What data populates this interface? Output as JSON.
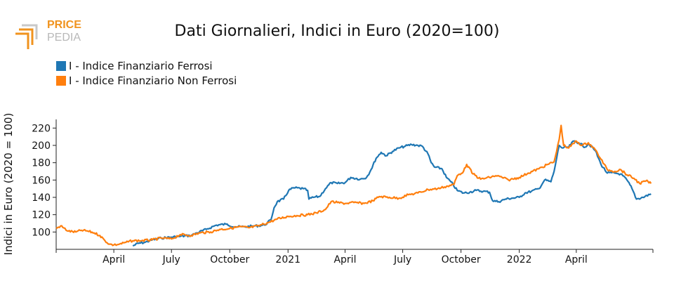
{
  "logo": {
    "line1": "PRICE",
    "line2": "PEDIA",
    "orange": "#f0931e",
    "grey": "#b8b8b8"
  },
  "chart_data": {
    "type": "line",
    "title": "Dati Giornalieri, Indici in Euro (2020=100)",
    "ylabel": "Indici in Euro (2020 = 100)",
    "xlabel": "",
    "ylim": [
      80,
      230
    ],
    "yticks": [
      100,
      120,
      140,
      160,
      180,
      200,
      220
    ],
    "xlim": [
      "2020-01-01",
      "2022-07-31"
    ],
    "xticks": [
      {
        "label": "April",
        "date": "2020-04-01"
      },
      {
        "label": "July",
        "date": "2020-07-01"
      },
      {
        "label": "October",
        "date": "2020-10-01"
      },
      {
        "label": "2021",
        "date": "2021-01-01"
      },
      {
        "label": "April",
        "date": "2021-04-01"
      },
      {
        "label": "July",
        "date": "2021-07-01"
      },
      {
        "label": "October",
        "date": "2021-10-01"
      },
      {
        "label": "2022",
        "date": "2022-01-01"
      },
      {
        "label": "April",
        "date": "2022-04-01"
      }
    ],
    "legend_position": "top-left",
    "grid": false,
    "series": [
      {
        "name": "I - Indice Finanziario Ferrosi",
        "color": "#1f77b4",
        "points": [
          [
            "2020-05-01",
            84
          ],
          [
            "2020-05-10",
            87
          ],
          [
            "2020-05-20",
            88
          ],
          [
            "2020-06-01",
            91
          ],
          [
            "2020-06-15",
            93
          ],
          [
            "2020-07-01",
            94
          ],
          [
            "2020-07-15",
            95
          ],
          [
            "2020-08-01",
            96
          ],
          [
            "2020-08-10",
            99
          ],
          [
            "2020-08-25",
            103
          ],
          [
            "2020-09-10",
            108
          ],
          [
            "2020-09-25",
            109
          ],
          [
            "2020-10-10",
            106
          ],
          [
            "2020-10-25",
            106
          ],
          [
            "2020-11-10",
            107
          ],
          [
            "2020-11-25",
            108
          ],
          [
            "2020-12-05",
            114
          ],
          [
            "2020-12-10",
            128
          ],
          [
            "2020-12-15",
            135
          ],
          [
            "2020-12-25",
            138
          ],
          [
            "2021-01-02",
            148
          ],
          [
            "2021-01-10",
            151
          ],
          [
            "2021-01-25",
            150
          ],
          [
            "2021-02-01",
            148
          ],
          [
            "2021-02-03",
            138
          ],
          [
            "2021-02-10",
            140
          ],
          [
            "2021-02-20",
            141
          ],
          [
            "2021-03-01",
            150
          ],
          [
            "2021-03-10",
            157
          ],
          [
            "2021-03-20",
            156
          ],
          [
            "2021-04-01",
            157
          ],
          [
            "2021-04-10",
            163
          ],
          [
            "2021-04-25",
            161
          ],
          [
            "2021-05-05",
            163
          ],
          [
            "2021-05-12",
            172
          ],
          [
            "2021-05-20",
            185
          ],
          [
            "2021-05-28",
            192
          ],
          [
            "2021-06-05",
            188
          ],
          [
            "2021-06-15",
            193
          ],
          [
            "2021-06-25",
            197
          ],
          [
            "2021-07-05",
            199
          ],
          [
            "2021-07-15",
            201
          ],
          [
            "2021-07-25",
            200
          ],
          [
            "2021-08-01",
            199
          ],
          [
            "2021-08-10",
            190
          ],
          [
            "2021-08-15",
            180
          ],
          [
            "2021-08-20",
            175
          ],
          [
            "2021-09-01",
            173
          ],
          [
            "2021-09-08",
            163
          ],
          [
            "2021-09-15",
            158
          ],
          [
            "2021-09-25",
            148
          ],
          [
            "2021-10-05",
            145
          ],
          [
            "2021-10-15",
            146
          ],
          [
            "2021-10-25",
            148
          ],
          [
            "2021-11-05",
            147
          ],
          [
            "2021-11-15",
            146
          ],
          [
            "2021-11-20",
            136
          ],
          [
            "2021-11-30",
            135
          ],
          [
            "2021-12-10",
            138
          ],
          [
            "2021-12-20",
            139
          ],
          [
            "2022-01-01",
            140
          ],
          [
            "2022-01-10",
            145
          ],
          [
            "2022-01-20",
            147
          ],
          [
            "2022-02-01",
            150
          ],
          [
            "2022-02-10",
            160
          ],
          [
            "2022-02-20",
            158
          ],
          [
            "2022-02-25",
            170
          ],
          [
            "2022-03-01",
            185
          ],
          [
            "2022-03-05",
            200
          ],
          [
            "2022-03-10",
            197
          ],
          [
            "2022-03-20",
            198
          ],
          [
            "2022-03-28",
            205
          ],
          [
            "2022-04-05",
            203
          ],
          [
            "2022-04-15",
            198
          ],
          [
            "2022-04-20",
            202
          ],
          [
            "2022-05-01",
            194
          ],
          [
            "2022-05-10",
            178
          ],
          [
            "2022-05-20",
            168
          ],
          [
            "2022-06-01",
            168
          ],
          [
            "2022-06-10",
            167
          ],
          [
            "2022-06-20",
            160
          ],
          [
            "2022-06-28",
            150
          ],
          [
            "2022-07-05",
            138
          ],
          [
            "2022-07-15",
            140
          ],
          [
            "2022-07-28",
            144
          ]
        ]
      },
      {
        "name": "I - Indice Finanziario Non Ferrosi",
        "color": "#ff7f0e",
        "points": [
          [
            "2020-01-01",
            104
          ],
          [
            "2020-01-08",
            107
          ],
          [
            "2020-01-20",
            101
          ],
          [
            "2020-02-01",
            100
          ],
          [
            "2020-02-10",
            102
          ],
          [
            "2020-02-20",
            101
          ],
          [
            "2020-03-01",
            99
          ],
          [
            "2020-03-10",
            96
          ],
          [
            "2020-03-18",
            90
          ],
          [
            "2020-03-25",
            86
          ],
          [
            "2020-04-01",
            85
          ],
          [
            "2020-04-10",
            86
          ],
          [
            "2020-04-20",
            88
          ],
          [
            "2020-05-01",
            90
          ],
          [
            "2020-05-15",
            90
          ],
          [
            "2020-06-01",
            91
          ],
          [
            "2020-06-15",
            93
          ],
          [
            "2020-07-01",
            92
          ],
          [
            "2020-07-15",
            97
          ],
          [
            "2020-08-01",
            96
          ],
          [
            "2020-08-15",
            99
          ],
          [
            "2020-09-01",
            100
          ],
          [
            "2020-09-15",
            103
          ],
          [
            "2020-10-01",
            104
          ],
          [
            "2020-10-15",
            106
          ],
          [
            "2020-11-01",
            105
          ],
          [
            "2020-11-15",
            107
          ],
          [
            "2020-12-01",
            111
          ],
          [
            "2020-12-15",
            115
          ],
          [
            "2021-01-01",
            118
          ],
          [
            "2021-01-15",
            119
          ],
          [
            "2021-02-01",
            120
          ],
          [
            "2021-02-15",
            122
          ],
          [
            "2021-03-01",
            126
          ],
          [
            "2021-03-10",
            135
          ],
          [
            "2021-03-20",
            134
          ],
          [
            "2021-04-01",
            133
          ],
          [
            "2021-04-15",
            134
          ],
          [
            "2021-05-01",
            133
          ],
          [
            "2021-05-15",
            136
          ],
          [
            "2021-05-25",
            141
          ],
          [
            "2021-06-10",
            140
          ],
          [
            "2021-06-25",
            139
          ],
          [
            "2021-07-10",
            143
          ],
          [
            "2021-07-25",
            145
          ],
          [
            "2021-08-10",
            149
          ],
          [
            "2021-08-25",
            150
          ],
          [
            "2021-09-05",
            152
          ],
          [
            "2021-09-10",
            153
          ],
          [
            "2021-09-20",
            155
          ],
          [
            "2021-09-25",
            165
          ],
          [
            "2021-10-05",
            170
          ],
          [
            "2021-10-10",
            178
          ],
          [
            "2021-10-20",
            167
          ],
          [
            "2021-11-01",
            161
          ],
          [
            "2021-11-15",
            163
          ],
          [
            "2021-11-25",
            165
          ],
          [
            "2021-12-05",
            163
          ],
          [
            "2021-12-15",
            160
          ],
          [
            "2022-01-01",
            163
          ],
          [
            "2022-01-15",
            168
          ],
          [
            "2022-02-01",
            173
          ],
          [
            "2022-02-15",
            178
          ],
          [
            "2022-02-25",
            181
          ],
          [
            "2022-03-01",
            193
          ],
          [
            "2022-03-05",
            207
          ],
          [
            "2022-03-08",
            223
          ],
          [
            "2022-03-12",
            200
          ],
          [
            "2022-03-20",
            197
          ],
          [
            "2022-04-01",
            205
          ],
          [
            "2022-04-10",
            200
          ],
          [
            "2022-04-20",
            203
          ],
          [
            "2022-05-01",
            195
          ],
          [
            "2022-05-10",
            184
          ],
          [
            "2022-05-20",
            172
          ],
          [
            "2022-06-01",
            170
          ],
          [
            "2022-06-10",
            172
          ],
          [
            "2022-06-20",
            166
          ],
          [
            "2022-07-01",
            162
          ],
          [
            "2022-07-10",
            156
          ],
          [
            "2022-07-20",
            159
          ],
          [
            "2022-07-28",
            156
          ]
        ]
      }
    ]
  }
}
